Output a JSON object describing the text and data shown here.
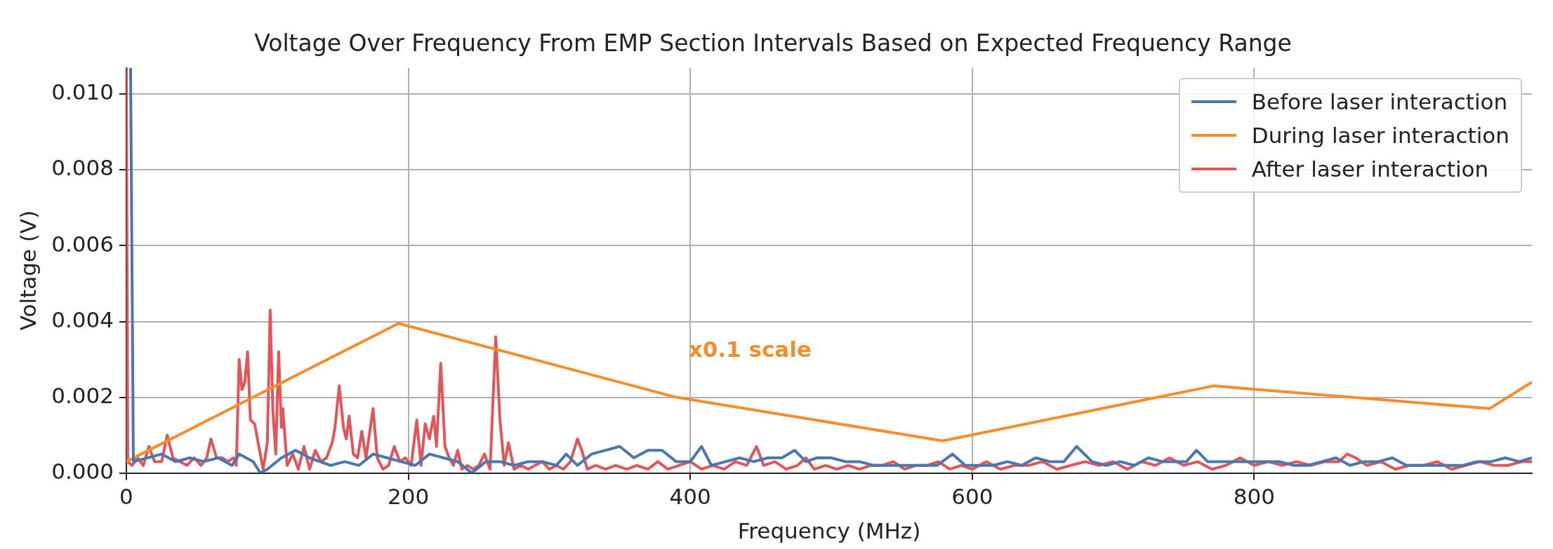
{
  "chart_data": {
    "type": "line",
    "title": "Voltage Over Frequency From EMP Section Intervals Based on Expected Frequency Range",
    "xlabel": "Frequency (MHz)",
    "ylabel": "Voltage (V)",
    "xlim": [
      0,
      997
    ],
    "xticks": [
      0,
      200,
      400,
      600,
      800
    ],
    "ylim": [
      0,
      0.0107
    ],
    "yticks": [
      {
        "value": 0,
        "label": "0.000"
      },
      {
        "value": 0.002,
        "label": "0.002"
      },
      {
        "value": 0.004,
        "label": "0.004"
      },
      {
        "value": 0.006,
        "label": "0.006"
      },
      {
        "value": 0.008,
        "label": "0.008"
      },
      {
        "value": 0.01,
        "label": "0.010"
      }
    ],
    "grid": true,
    "legend": "top right",
    "marker": "none",
    "line_style": "solid",
    "annotations": [
      "x0.1 scale"
    ],
    "series": [
      {
        "name": "Before laser interaction",
        "color": "#4a78ad",
        "x": [
          3,
          5,
          15,
          25,
          35,
          45,
          55,
          65,
          75,
          80,
          90,
          95,
          100,
          110,
          120,
          130,
          145,
          155,
          165,
          175,
          185,
          195,
          205,
          215,
          225,
          235,
          245,
          255,
          265,
          275,
          285,
          295,
          305,
          312,
          320,
          330,
          340,
          350,
          360,
          370,
          380,
          390,
          400,
          408,
          415,
          425,
          435,
          445,
          455,
          465,
          474,
          482,
          490,
          500,
          510,
          520,
          530,
          540,
          550,
          560,
          575,
          586,
          595,
          605,
          615,
          625,
          635,
          645,
          655,
          665,
          674,
          685,
          695,
          705,
          715,
          725,
          735,
          745,
          752,
          759,
          767,
          777,
          787,
          797,
          808,
          818,
          828,
          838,
          848,
          858,
          868,
          878,
          888,
          898,
          908,
          918,
          928,
          938,
          948,
          958,
          968,
          978,
          988,
          997
        ],
        "values": [
          0.0107,
          0.0003,
          0.0004,
          0.0005,
          0.0003,
          0.0004,
          0.0003,
          0.0004,
          0.0002,
          0.0005,
          0.0003,
          0.0,
          0.0001,
          0.0004,
          0.0006,
          0.0004,
          0.0002,
          0.0003,
          0.0002,
          0.0005,
          0.0004,
          0.0003,
          0.0002,
          0.0005,
          0.0004,
          0.0003,
          0.0,
          0.0003,
          0.0003,
          0.0002,
          0.0003,
          0.0003,
          0.0002,
          0.0005,
          0.0002,
          0.0005,
          0.0006,
          0.0007,
          0.0004,
          0.0006,
          0.0006,
          0.0003,
          0.0003,
          0.0007,
          0.0002,
          0.0003,
          0.0004,
          0.0003,
          0.0004,
          0.0004,
          0.0006,
          0.0003,
          0.0004,
          0.0004,
          0.0003,
          0.0003,
          0.0002,
          0.0002,
          0.0002,
          0.0002,
          0.0002,
          0.0005,
          0.0002,
          0.0002,
          0.0002,
          0.0003,
          0.0002,
          0.0004,
          0.0003,
          0.0003,
          0.0007,
          0.0003,
          0.0002,
          0.0003,
          0.0002,
          0.0004,
          0.0003,
          0.0003,
          0.0003,
          0.0006,
          0.0003,
          0.0003,
          0.0003,
          0.0003,
          0.0003,
          0.0003,
          0.0002,
          0.0002,
          0.0003,
          0.0004,
          0.0002,
          0.0003,
          0.0003,
          0.0004,
          0.0002,
          0.0002,
          0.0002,
          0.0002,
          0.0002,
          0.0003,
          0.0003,
          0.0004,
          0.0003,
          0.0004
        ]
      },
      {
        "name": "During laser interaction",
        "color": "#f28e2b",
        "x": [
          0,
          193,
          390,
          579,
          771,
          967,
          997
        ],
        "values": [
          0.0003,
          0.00395,
          0.002,
          0.00085,
          0.0023,
          0.0017,
          0.0024
        ]
      },
      {
        "name": "After laser interaction",
        "color": "#e15759",
        "x": [
          0,
          1,
          4,
          8,
          12,
          16,
          20,
          25,
          29,
          33,
          38,
          43,
          48,
          53,
          57,
          60,
          64,
          68,
          72,
          76,
          78,
          80,
          82,
          84,
          86,
          88,
          91,
          94,
          97,
          100,
          102,
          104,
          106,
          108,
          110,
          111,
          114,
          118,
          122,
          126,
          130,
          134,
          138,
          142,
          146,
          148,
          151,
          154,
          156,
          158,
          161,
          164,
          167,
          170,
          175,
          178,
          182,
          186,
          190,
          194,
          198,
          202,
          206,
          209,
          212,
          215,
          218,
          220,
          223,
          226,
          229,
          232,
          235,
          238,
          242,
          246,
          250,
          254,
          258,
          262,
          265,
          268,
          271,
          275,
          280,
          285,
          290,
          295,
          300,
          305,
          310,
          315,
          320,
          323,
          327,
          333,
          340,
          347,
          355,
          362,
          370,
          377,
          384,
          392,
          400,
          408,
          416,
          424,
          432,
          440,
          447,
          452,
          460,
          468,
          476,
          482,
          488,
          496,
          504,
          512,
          520,
          528,
          536,
          544,
          552,
          560,
          568,
          576,
          584,
          592,
          600,
          610,
          620,
          630,
          640,
          650,
          660,
          670,
          680,
          690,
          700,
          710,
          720,
          730,
          740,
          750,
          760,
          770,
          780,
          790,
          800,
          810,
          820,
          830,
          840,
          850,
          860,
          866,
          872,
          880,
          890,
          900,
          910,
          920,
          930,
          940,
          950,
          960,
          970,
          980,
          990,
          997
        ],
        "values": [
          0.0107,
          0.0003,
          0.0002,
          0.0004,
          0.0002,
          0.0007,
          0.0003,
          0.0003,
          0.001,
          0.0004,
          0.0003,
          0.0002,
          0.0004,
          0.0002,
          0.0004,
          0.0009,
          0.0004,
          0.0004,
          0.0003,
          0.0004,
          0.0002,
          0.003,
          0.0022,
          0.0024,
          0.0032,
          0.0014,
          0.0013,
          0.0007,
          0.0001,
          0.0008,
          0.0043,
          0.0016,
          0.0005,
          0.0032,
          0.0012,
          0.0017,
          0.0002,
          0.0005,
          0.0001,
          0.0007,
          0.0001,
          0.0006,
          0.0003,
          0.0004,
          0.0008,
          0.0012,
          0.0023,
          0.0012,
          0.0009,
          0.0015,
          0.0005,
          0.0004,
          0.0011,
          0.0004,
          0.0017,
          0.0004,
          0.0001,
          0.0002,
          0.0007,
          0.0003,
          0.0004,
          0.0002,
          0.0014,
          0.0002,
          0.0013,
          0.0009,
          0.0015,
          0.0007,
          0.0029,
          0.0007,
          0.0004,
          0.0002,
          0.0006,
          0.0001,
          0.0002,
          0.0001,
          0.0002,
          0.0005,
          0.0001,
          0.0036,
          0.0014,
          0.0002,
          0.0008,
          0.0001,
          0.0002,
          0.0001,
          0.0002,
          0.0003,
          0.0001,
          0.0002,
          0.0001,
          0.0003,
          0.0009,
          0.0006,
          0.0001,
          0.0002,
          0.0001,
          0.0002,
          0.0001,
          0.0002,
          0.0001,
          0.0003,
          0.0001,
          0.0002,
          0.0003,
          0.0001,
          0.0002,
          0.0001,
          0.0003,
          0.0002,
          0.0007,
          0.0002,
          0.0003,
          0.0001,
          0.0002,
          0.0004,
          0.0001,
          0.0002,
          0.0001,
          0.0002,
          0.0001,
          0.0002,
          0.0002,
          0.0003,
          0.0001,
          0.0002,
          0.0002,
          0.0003,
          0.0001,
          0.0002,
          0.0001,
          0.0003,
          0.0001,
          0.0002,
          0.0002,
          0.0003,
          0.0001,
          0.0002,
          0.0003,
          0.0002,
          0.0003,
          0.0001,
          0.0003,
          0.0002,
          0.0004,
          0.0002,
          0.0003,
          0.0001,
          0.0002,
          0.0004,
          0.0002,
          0.0003,
          0.0002,
          0.0003,
          0.0002,
          0.0003,
          0.0003,
          0.0005,
          0.0004,
          0.0002,
          0.0003,
          0.0001,
          0.0002,
          0.0002,
          0.0003,
          0.0001,
          0.0002,
          0.0003,
          0.0002,
          0.0002,
          0.0003,
          0.0003
        ]
      }
    ]
  }
}
